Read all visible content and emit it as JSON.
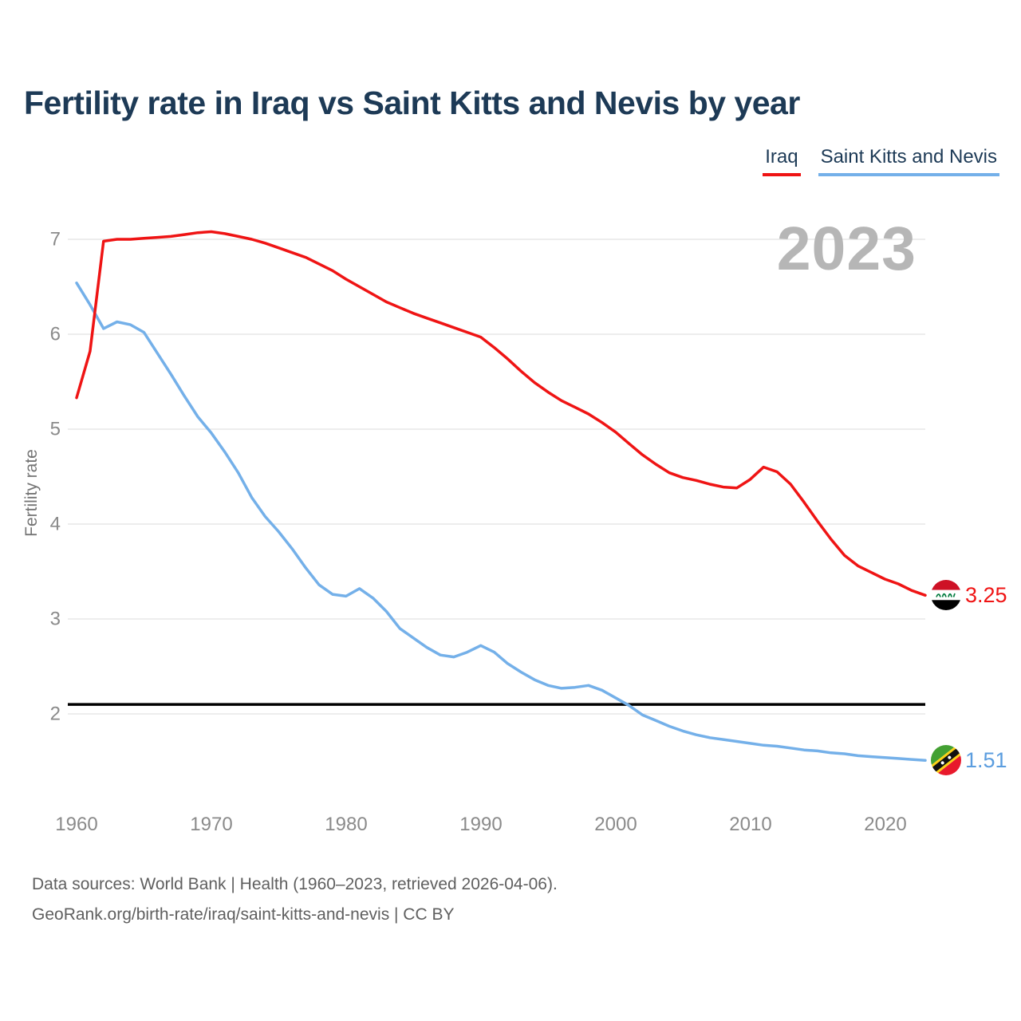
{
  "title": "Fertility rate in Iraq vs Saint Kitts and Nevis by year",
  "watermark": "2023",
  "legend": [
    {
      "label": "Iraq",
      "color": "#ef1414"
    },
    {
      "label": "Saint Kitts and Nevis",
      "color": "#74b0e9"
    }
  ],
  "y_axis": {
    "label": "Fertility rate",
    "ticks": [
      7,
      6,
      5,
      4,
      3,
      2
    ]
  },
  "x_axis": {
    "ticks": [
      "1960",
      "1970",
      "1980",
      "1990",
      "2000",
      "2010",
      "2020"
    ]
  },
  "end_labels": [
    {
      "country": "Iraq",
      "value": "3.25",
      "color": "#ef1414"
    },
    {
      "country": "Saint Kitts and Nevis",
      "value": "1.51",
      "color": "#5b9ddf"
    }
  ],
  "footer": {
    "line1": "Data sources: World Bank | Health (1960–2023, retrieved 2026-04-06).",
    "line2": "GeoRank.org/birth-rate/iraq/saint-kitts-and-nevis | CC BY"
  },
  "colors": {
    "iraq_line": "#ef1414",
    "skn_line": "#74b0e9",
    "replacement_line": "#000000",
    "gridline": "#e7e7e7",
    "title_text": "#1d3a56",
    "tick_text": "#8a8a8a",
    "watermark_text": "#b6b6b6"
  },
  "chart_data": {
    "type": "line",
    "title": "Fertility rate in Iraq vs Saint Kitts and Nevis by year",
    "xlabel": "",
    "ylabel": "Fertility rate",
    "xlim": [
      1960,
      2023
    ],
    "ylim": [
      1.3,
      7.3
    ],
    "grid": "horizontal",
    "legend_position": "top-right",
    "replacement_level": 2.1,
    "x": [
      1960,
      1961,
      1962,
      1963,
      1964,
      1965,
      1966,
      1967,
      1968,
      1969,
      1970,
      1971,
      1972,
      1973,
      1974,
      1975,
      1976,
      1977,
      1978,
      1979,
      1980,
      1981,
      1982,
      1983,
      1984,
      1985,
      1986,
      1987,
      1988,
      1989,
      1990,
      1991,
      1992,
      1993,
      1994,
      1995,
      1996,
      1997,
      1998,
      1999,
      2000,
      2001,
      2002,
      2003,
      2004,
      2005,
      2006,
      2007,
      2008,
      2009,
      2010,
      2011,
      2012,
      2013,
      2014,
      2015,
      2016,
      2017,
      2018,
      2019,
      2020,
      2021,
      2022,
      2023
    ],
    "series": [
      {
        "name": "Iraq",
        "color": "#ef1414",
        "end_value": 3.25,
        "values": [
          5.33,
          5.82,
          6.98,
          7.0,
          7.0,
          7.01,
          7.02,
          7.03,
          7.05,
          7.07,
          7.08,
          7.06,
          7.03,
          7.0,
          6.96,
          6.91,
          6.86,
          6.81,
          6.74,
          6.67,
          6.58,
          6.5,
          6.42,
          6.34,
          6.28,
          6.22,
          6.17,
          6.12,
          6.07,
          6.02,
          5.97,
          5.86,
          5.74,
          5.61,
          5.49,
          5.39,
          5.3,
          5.23,
          5.16,
          5.07,
          4.97,
          4.85,
          4.73,
          4.63,
          4.54,
          4.49,
          4.46,
          4.42,
          4.39,
          4.38,
          4.47,
          4.6,
          4.55,
          4.42,
          4.23,
          4.03,
          3.84,
          3.67,
          3.56,
          3.49,
          3.42,
          3.37,
          3.3,
          3.25
        ]
      },
      {
        "name": "Saint Kitts and Nevis",
        "color": "#74b0e9",
        "end_value": 1.51,
        "values": [
          6.54,
          6.31,
          6.06,
          6.13,
          6.1,
          6.02,
          5.8,
          5.58,
          5.35,
          5.13,
          4.96,
          4.76,
          4.54,
          4.28,
          4.08,
          3.92,
          3.74,
          3.54,
          3.36,
          3.26,
          3.24,
          3.32,
          3.22,
          3.08,
          2.9,
          2.8,
          2.7,
          2.62,
          2.6,
          2.65,
          2.72,
          2.65,
          2.53,
          2.44,
          2.36,
          2.3,
          2.27,
          2.28,
          2.3,
          2.25,
          2.17,
          2.09,
          1.99,
          1.93,
          1.87,
          1.82,
          1.78,
          1.75,
          1.73,
          1.71,
          1.69,
          1.67,
          1.66,
          1.64,
          1.62,
          1.61,
          1.59,
          1.58,
          1.56,
          1.55,
          1.54,
          1.53,
          1.52,
          1.51
        ]
      }
    ]
  }
}
